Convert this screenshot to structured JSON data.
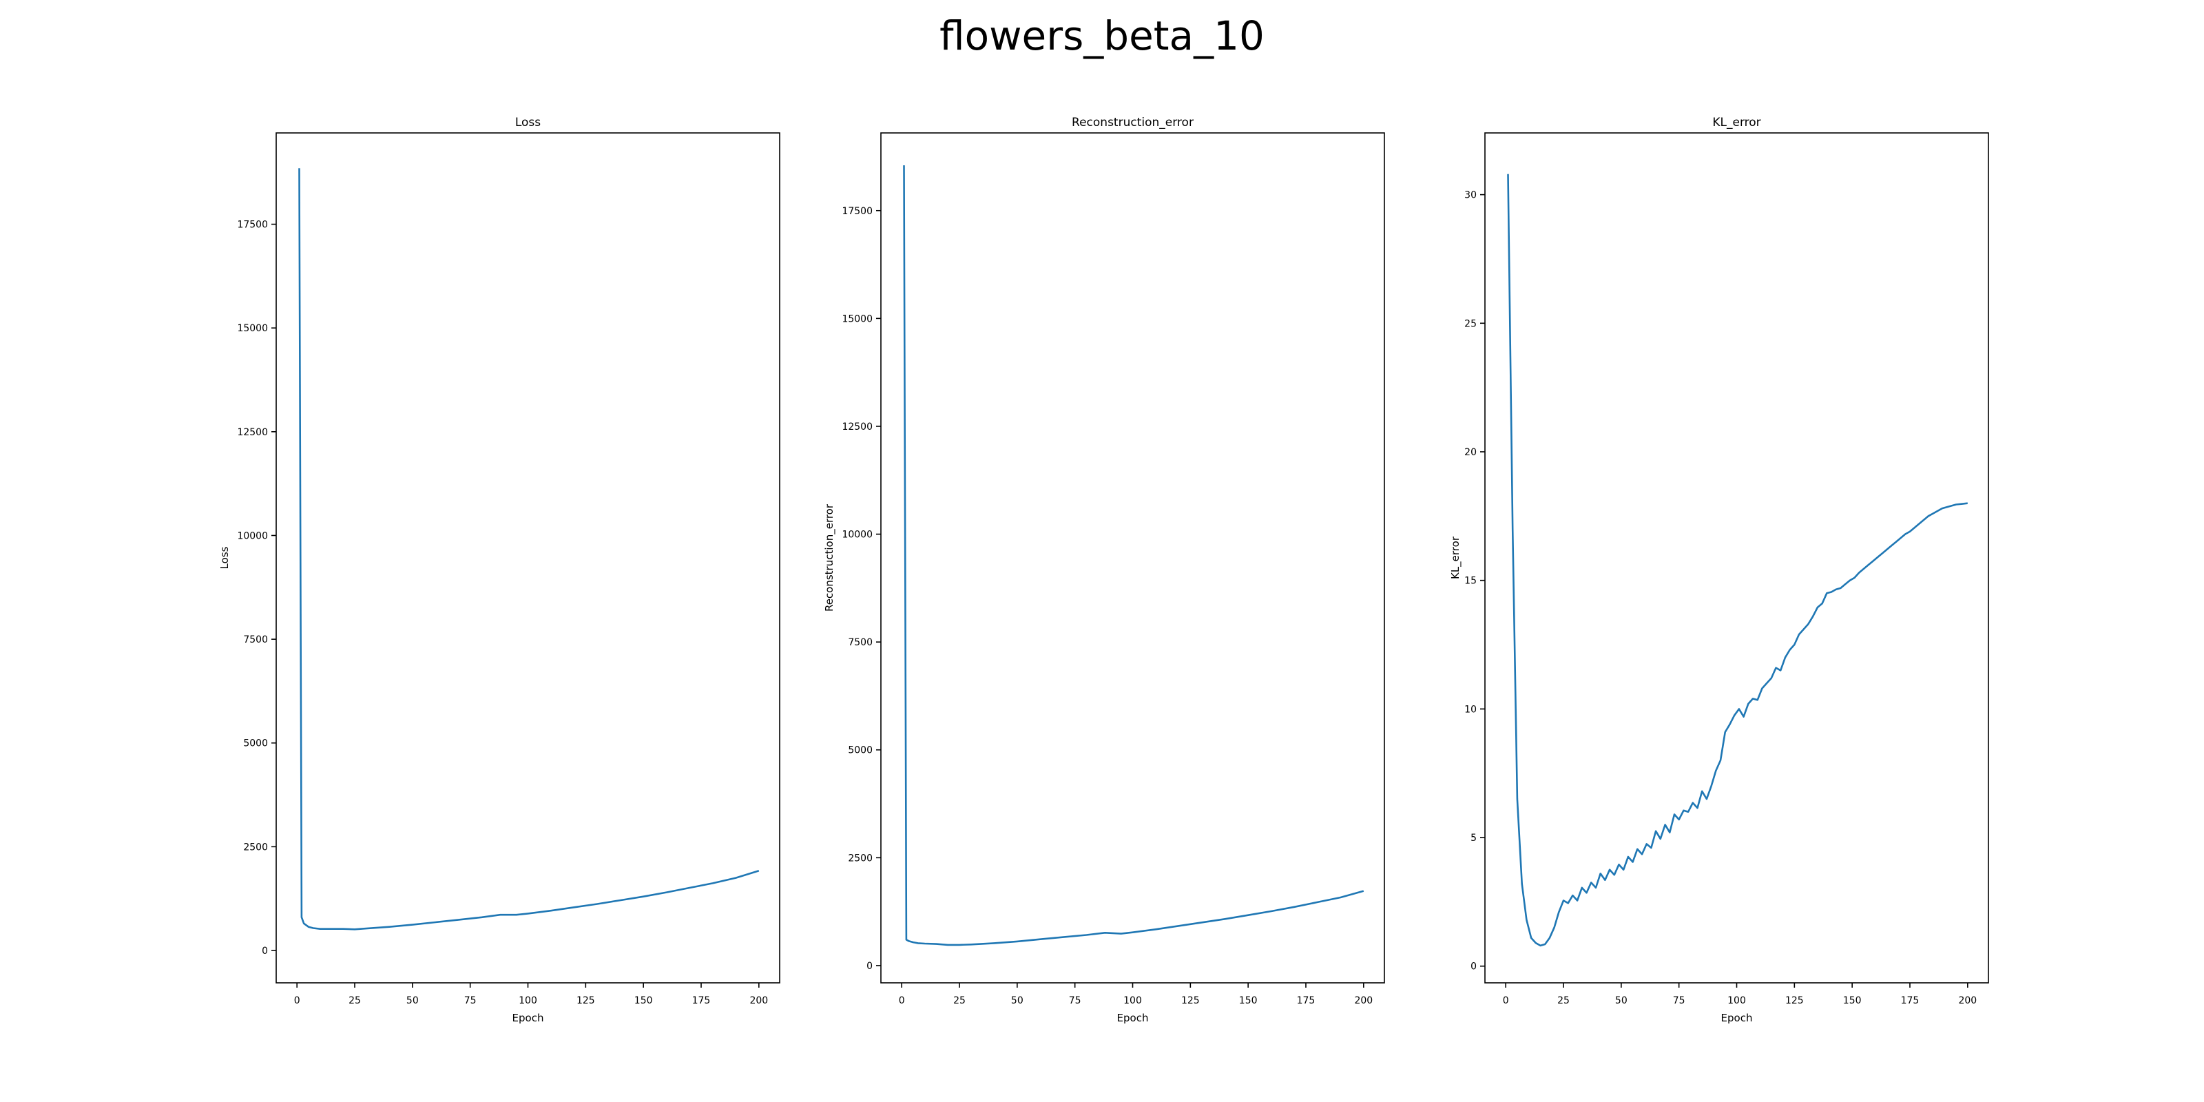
{
  "figure": {
    "title": "flowers_beta_10"
  },
  "colors": {
    "line": "#1f77b4",
    "axis": "#000000",
    "background": "#ffffff"
  },
  "chart_data": [
    {
      "type": "line",
      "title": "Loss",
      "xlabel": "Epoch",
      "ylabel": "Loss",
      "xlim": [
        -9,
        209
      ],
      "ylim": [
        -780,
        19700
      ],
      "xticks": [
        0,
        25,
        50,
        75,
        100,
        125,
        150,
        175,
        200
      ],
      "yticks": [
        0,
        2500,
        5000,
        7500,
        10000,
        12500,
        15000,
        17500
      ],
      "grid": false,
      "series": [
        {
          "x": [
            1,
            2,
            3,
            5,
            7,
            10,
            15,
            20,
            25,
            30,
            40,
            50,
            60,
            70,
            80,
            88,
            95,
            100,
            110,
            120,
            130,
            140,
            150,
            160,
            170,
            180,
            190,
            200
          ],
          "y": [
            18850,
            800,
            650,
            570,
            540,
            520,
            520,
            520,
            510,
            530,
            570,
            620,
            680,
            740,
            800,
            860,
            860,
            890,
            960,
            1040,
            1120,
            1210,
            1300,
            1400,
            1510,
            1620,
            1750,
            1920
          ]
        }
      ]
    },
    {
      "type": "line",
      "title": "Reconstruction_error",
      "xlabel": "Epoch",
      "ylabel": "Reconstruction_error",
      "xlim": [
        -9,
        209
      ],
      "ylim": [
        -400,
        19300
      ],
      "xticks": [
        0,
        25,
        50,
        75,
        100,
        125,
        150,
        175,
        200
      ],
      "yticks": [
        0,
        2500,
        5000,
        7500,
        10000,
        12500,
        15000,
        17500
      ],
      "grid": false,
      "series": [
        {
          "x": [
            1,
            2,
            3,
            5,
            7,
            10,
            15,
            20,
            25,
            30,
            40,
            50,
            60,
            70,
            80,
            88,
            95,
            100,
            110,
            120,
            130,
            140,
            150,
            160,
            170,
            180,
            190,
            200
          ],
          "y": [
            18550,
            600,
            570,
            540,
            520,
            510,
            500,
            480,
            480,
            490,
            520,
            560,
            610,
            660,
            710,
            760,
            740,
            770,
            840,
            920,
            1000,
            1080,
            1170,
            1260,
            1360,
            1470,
            1580,
            1730
          ]
        }
      ]
    },
    {
      "type": "line",
      "title": "KL_error",
      "xlabel": "Epoch",
      "ylabel": "KL_error",
      "xlim": [
        -9,
        209
      ],
      "ylim": [
        -0.65,
        32.4
      ],
      "xticks": [
        0,
        25,
        50,
        75,
        100,
        125,
        150,
        175,
        200
      ],
      "yticks": [
        0,
        5,
        10,
        15,
        20,
        25,
        30
      ],
      "grid": false,
      "series": [
        {
          "x": [
            1,
            3,
            5,
            7,
            9,
            11,
            13,
            15,
            17,
            19,
            21,
            23,
            25,
            27,
            29,
            31,
            33,
            35,
            37,
            39,
            41,
            43,
            45,
            47,
            49,
            51,
            53,
            55,
            57,
            59,
            61,
            63,
            65,
            67,
            69,
            71,
            73,
            75,
            77,
            79,
            81,
            83,
            85,
            87,
            89,
            91,
            93,
            95,
            97,
            99,
            101,
            103,
            105,
            107,
            109,
            111,
            113,
            115,
            117,
            119,
            121,
            123,
            125,
            127,
            129,
            131,
            133,
            135,
            137,
            139,
            141,
            143,
            145,
            147,
            149,
            151,
            153,
            155,
            157,
            159,
            161,
            163,
            165,
            167,
            169,
            171,
            173,
            175,
            177,
            179,
            181,
            183,
            185,
            187,
            189,
            191,
            193,
            195,
            197,
            200
          ],
          "y": [
            30.8,
            17.0,
            6.5,
            3.2,
            1.8,
            1.1,
            0.9,
            0.8,
            0.85,
            1.1,
            1.5,
            2.1,
            2.55,
            2.45,
            2.75,
            2.55,
            3.05,
            2.85,
            3.25,
            3.05,
            3.6,
            3.35,
            3.75,
            3.55,
            3.95,
            3.75,
            4.25,
            4.05,
            4.55,
            4.35,
            4.75,
            4.6,
            5.25,
            4.95,
            5.5,
            5.2,
            5.9,
            5.7,
            6.05,
            6.0,
            6.35,
            6.15,
            6.8,
            6.5,
            7.0,
            7.6,
            8.0,
            9.1,
            9.4,
            9.75,
            10.0,
            9.7,
            10.2,
            10.4,
            10.35,
            10.8,
            11.0,
            11.2,
            11.6,
            11.5,
            12.0,
            12.3,
            12.5,
            12.9,
            13.1,
            13.3,
            13.6,
            13.95,
            14.1,
            14.5,
            14.55,
            14.65,
            14.7,
            14.85,
            15.0,
            15.1,
            15.3,
            15.45,
            15.6,
            15.75,
            15.9,
            16.05,
            16.2,
            16.35,
            16.5,
            16.65,
            16.8,
            16.9,
            17.05,
            17.2,
            17.35,
            17.5,
            17.6,
            17.7,
            17.8,
            17.85,
            17.9,
            17.95,
            17.97,
            18.0
          ]
        }
      ]
    }
  ]
}
